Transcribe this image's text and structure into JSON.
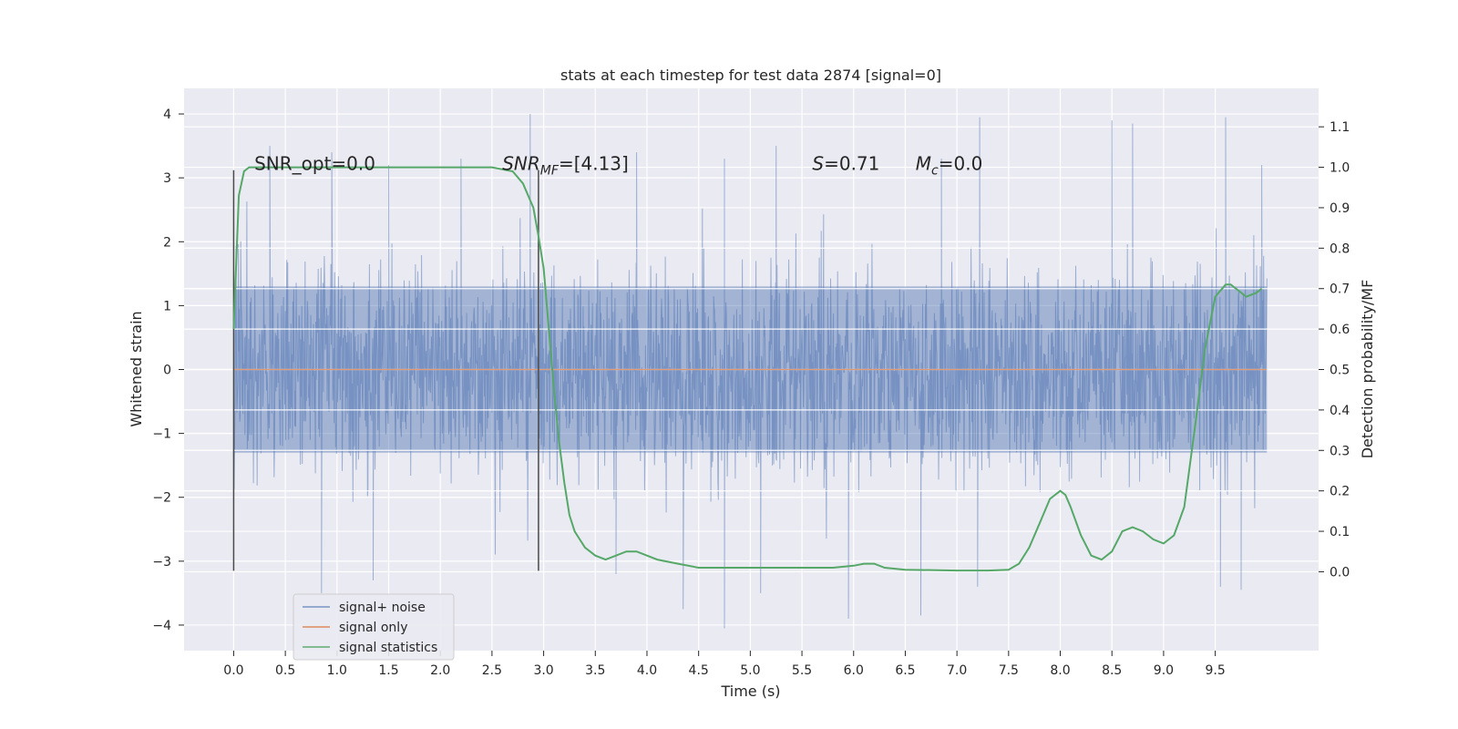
{
  "chart_data": {
    "type": "line",
    "title": "stats at each timestep for test data 2874 [signal=0]",
    "xlabel": "Time (s)",
    "ylabel": "Whitened strain",
    "y2label": "Detection probability/MF",
    "xlim": [
      -0.48,
      10.5
    ],
    "ylim": [
      -4.4,
      4.4
    ],
    "y2lim": [
      -0.195,
      1.195
    ],
    "x_ticks": [
      0.0,
      0.5,
      1.0,
      1.5,
      2.0,
      2.5,
      3.0,
      3.5,
      4.0,
      4.5,
      5.0,
      5.5,
      6.0,
      6.5,
      7.0,
      7.5,
      8.0,
      8.5,
      9.0,
      9.5
    ],
    "x_tick_labels": [
      "0.0",
      "0.5",
      "1.0",
      "1.5",
      "2.0",
      "2.5",
      "3.0",
      "3.5",
      "4.0",
      "4.5",
      "5.0",
      "5.5",
      "6.0",
      "6.5",
      "7.0",
      "7.5",
      "8.0",
      "8.5",
      "9.0",
      "9.5"
    ],
    "y_ticks": [
      4,
      3,
      2,
      1,
      0,
      -1,
      -2,
      -3,
      -4
    ],
    "y_tick_labels": [
      "4",
      "3",
      "2",
      "1",
      "0",
      "−1",
      "−2",
      "−3",
      "−4"
    ],
    "y2_ticks": [
      1.1,
      1.0,
      0.9,
      0.8,
      0.7,
      0.6,
      0.5,
      0.4,
      0.3,
      0.2,
      0.1,
      0.0
    ],
    "y2_tick_labels": [
      "1.1",
      "1.0",
      "0.9",
      "0.8",
      "0.7",
      "0.6",
      "0.5",
      "0.4",
      "0.3",
      "0.2",
      "0.1",
      "0.0"
    ],
    "grid": true,
    "legend_position": "lower-left",
    "series": [
      {
        "name": "signal+ noise",
        "color": "#4c72b0",
        "axis": "left",
        "x_range": [
          0.0,
          10.0
        ],
        "envelope_upper_approx": 2.3,
        "envelope_lower_approx": -2.3,
        "dense_core": [
          -1.3,
          1.3
        ],
        "peaks": [
          [
            0.35,
            3.5
          ],
          [
            0.95,
            3.4
          ],
          [
            1.5,
            3.2
          ],
          [
            2.2,
            3.3
          ],
          [
            2.87,
            4.0
          ],
          [
            3.9,
            3.4
          ],
          [
            4.75,
            3.3
          ],
          [
            5.25,
            3.5
          ],
          [
            6.85,
            3.3
          ],
          [
            7.22,
            3.95
          ],
          [
            8.5,
            3.9
          ],
          [
            8.7,
            3.85
          ],
          [
            9.6,
            3.95
          ],
          [
            9.95,
            3.2
          ]
        ],
        "troughs": [
          [
            0.85,
            -3.5
          ],
          [
            1.35,
            -3.3
          ],
          [
            3.7,
            -3.2
          ],
          [
            4.35,
            -3.75
          ],
          [
            4.75,
            -4.05
          ],
          [
            5.1,
            -3.5
          ],
          [
            5.95,
            -3.9
          ],
          [
            6.65,
            -3.85
          ],
          [
            7.2,
            -3.4
          ],
          [
            9.55,
            -3.4
          ],
          [
            9.75,
            -3.45
          ]
        ]
      },
      {
        "name": "signal only",
        "color": "#dd8452",
        "axis": "left",
        "x": [
          0.0,
          10.0
        ],
        "y": [
          0.0,
          0.0
        ]
      },
      {
        "name": "signal statistics",
        "color": "#55a868",
        "axis": "right",
        "x": [
          0.0,
          0.05,
          0.1,
          0.15,
          0.25,
          0.5,
          1.0,
          1.5,
          2.0,
          2.5,
          2.7,
          2.8,
          2.9,
          2.95,
          3.0,
          3.05,
          3.1,
          3.15,
          3.2,
          3.25,
          3.3,
          3.4,
          3.5,
          3.6,
          3.7,
          3.8,
          3.9,
          4.0,
          4.1,
          4.3,
          4.5,
          4.8,
          5.0,
          5.2,
          5.5,
          5.8,
          6.0,
          6.1,
          6.2,
          6.3,
          6.5,
          7.0,
          7.3,
          7.5,
          7.6,
          7.7,
          7.8,
          7.9,
          8.0,
          8.05,
          8.1,
          8.2,
          8.3,
          8.4,
          8.5,
          8.6,
          8.7,
          8.8,
          8.9,
          9.0,
          9.1,
          9.2,
          9.3,
          9.4,
          9.5,
          9.6,
          9.65,
          9.7,
          9.8,
          9.9,
          9.95
        ],
        "y": [
          0.6,
          0.93,
          0.99,
          1.0,
          1.0,
          1.0,
          1.0,
          1.0,
          1.0,
          1.0,
          0.99,
          0.96,
          0.9,
          0.83,
          0.75,
          0.6,
          0.45,
          0.32,
          0.22,
          0.14,
          0.1,
          0.06,
          0.04,
          0.03,
          0.04,
          0.05,
          0.05,
          0.04,
          0.03,
          0.02,
          0.01,
          0.01,
          0.01,
          0.01,
          0.01,
          0.01,
          0.015,
          0.02,
          0.02,
          0.01,
          0.005,
          0.003,
          0.003,
          0.005,
          0.02,
          0.06,
          0.12,
          0.18,
          0.2,
          0.19,
          0.16,
          0.09,
          0.04,
          0.03,
          0.05,
          0.1,
          0.11,
          0.1,
          0.08,
          0.07,
          0.09,
          0.16,
          0.35,
          0.55,
          0.68,
          0.71,
          0.71,
          0.7,
          0.68,
          0.69,
          0.7
        ]
      }
    ],
    "vlines": [
      0.0,
      2.95
    ],
    "annotations": [
      {
        "text": "SNR_opt=0.0",
        "x": 0.2
      },
      {
        "text": "SNR",
        "sub": "MF",
        "rest": "=[4.13]",
        "x": 2.6
      },
      {
        "text": "S",
        "rest": "=0.71",
        "x": 5.6
      },
      {
        "text": "M",
        "sub": "c",
        "rest": "=0.0",
        "x": 6.6
      }
    ],
    "annotation_y": 3.12
  }
}
